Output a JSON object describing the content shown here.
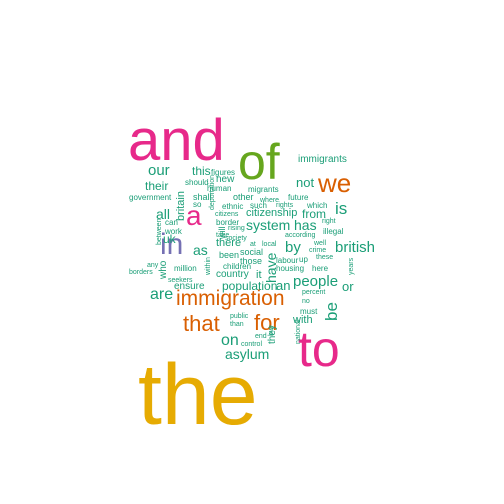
{
  "palette": {
    "teal": "#1b9e77",
    "orange": "#d95f02",
    "purple": "#7570b3",
    "magenta": "#e7298a",
    "green": "#66a61e",
    "gold": "#e6ab02"
  },
  "words": [
    {
      "text": "the",
      "color": "gold"
    },
    {
      "text": "and",
      "color": "magenta"
    },
    {
      "text": "of",
      "color": "green"
    },
    {
      "text": "to",
      "color": "magenta"
    },
    {
      "text": "a",
      "color": "magenta"
    },
    {
      "text": "in",
      "color": "purple"
    },
    {
      "text": "we",
      "color": "orange"
    },
    {
      "text": "immigration",
      "color": "orange"
    },
    {
      "text": "that",
      "color": "orange"
    },
    {
      "text": "for",
      "color": "orange"
    },
    {
      "text": "is",
      "color": "teal"
    },
    {
      "text": "our",
      "color": "teal"
    },
    {
      "text": "not",
      "color": "teal"
    },
    {
      "text": "immigrants",
      "color": "teal"
    },
    {
      "text": "are",
      "color": "teal"
    },
    {
      "text": "on",
      "color": "teal"
    },
    {
      "text": "be",
      "color": "teal"
    },
    {
      "text": "people",
      "color": "teal"
    },
    {
      "text": "british",
      "color": "teal"
    },
    {
      "text": "by",
      "color": "teal"
    },
    {
      "text": "asylum",
      "color": "teal"
    },
    {
      "text": "system",
      "color": "teal"
    },
    {
      "text": "has",
      "color": "teal"
    },
    {
      "text": "all",
      "color": "teal"
    },
    {
      "text": "as",
      "color": "teal"
    },
    {
      "text": "have",
      "color": "teal"
    },
    {
      "text": "population",
      "color": "teal"
    },
    {
      "text": "an",
      "color": "teal"
    },
    {
      "text": "or",
      "color": "teal"
    },
    {
      "text": "this",
      "color": "teal"
    },
    {
      "text": "their",
      "color": "teal"
    },
    {
      "text": "britain",
      "color": "teal"
    },
    {
      "text": "uk",
      "color": "teal"
    },
    {
      "text": "from",
      "color": "teal"
    },
    {
      "text": "citizenship",
      "color": "teal"
    },
    {
      "text": "with",
      "color": "teal"
    },
    {
      "text": "it",
      "color": "teal"
    },
    {
      "text": "new",
      "color": "teal"
    },
    {
      "text": "there",
      "color": "teal"
    },
    {
      "text": "country",
      "color": "teal"
    },
    {
      "text": "ensure",
      "color": "teal"
    },
    {
      "text": "will",
      "color": "teal"
    },
    {
      "text": "who",
      "color": "teal"
    },
    {
      "text": "they",
      "color": "teal"
    },
    {
      "text": "figures",
      "color": "teal"
    },
    {
      "text": "should",
      "color": "teal"
    },
    {
      "text": "human",
      "color": "teal"
    },
    {
      "text": "so",
      "color": "teal"
    },
    {
      "text": "other",
      "color": "teal"
    },
    {
      "text": "migrants",
      "color": "teal"
    },
    {
      "text": "future",
      "color": "teal"
    },
    {
      "text": "where",
      "color": "teal"
    },
    {
      "text": "which",
      "color": "teal"
    },
    {
      "text": "rights",
      "color": "teal"
    },
    {
      "text": "government",
      "color": "teal"
    },
    {
      "text": "shall",
      "color": "teal"
    },
    {
      "text": "ethnic",
      "color": "teal"
    },
    {
      "text": "such",
      "color": "teal"
    },
    {
      "text": "citizens",
      "color": "teal"
    },
    {
      "text": "border",
      "color": "teal"
    },
    {
      "text": "rising",
      "color": "teal"
    },
    {
      "text": "can",
      "color": "teal"
    },
    {
      "text": "work",
      "color": "teal"
    },
    {
      "text": "take",
      "color": "teal"
    },
    {
      "text": "society",
      "color": "teal"
    },
    {
      "text": "according",
      "color": "teal"
    },
    {
      "text": "illegal",
      "color": "teal"
    },
    {
      "text": "right",
      "color": "teal"
    },
    {
      "text": "crime",
      "color": "teal"
    },
    {
      "text": "well",
      "color": "teal"
    },
    {
      "text": "at",
      "color": "teal"
    },
    {
      "text": "local",
      "color": "teal"
    },
    {
      "text": "social",
      "color": "teal"
    },
    {
      "text": "been",
      "color": "teal"
    },
    {
      "text": "these",
      "color": "teal"
    },
    {
      "text": "labour",
      "color": "teal"
    },
    {
      "text": "up",
      "color": "teal"
    },
    {
      "text": "any",
      "color": "teal"
    },
    {
      "text": "those",
      "color": "teal"
    },
    {
      "text": "children",
      "color": "teal"
    },
    {
      "text": "housing",
      "color": "teal"
    },
    {
      "text": "here",
      "color": "teal"
    },
    {
      "text": "million",
      "color": "teal"
    },
    {
      "text": "borders",
      "color": "teal"
    },
    {
      "text": "seekers",
      "color": "teal"
    },
    {
      "text": "percent",
      "color": "teal"
    },
    {
      "text": "no",
      "color": "teal"
    },
    {
      "text": "must",
      "color": "teal"
    },
    {
      "text": "public",
      "color": "teal"
    },
    {
      "text": "than",
      "color": "teal"
    },
    {
      "text": "end",
      "color": "teal"
    },
    {
      "text": "control",
      "color": "teal"
    },
    {
      "text": "national",
      "color": "teal"
    },
    {
      "text": "but",
      "color": "teal"
    },
    {
      "text": "between",
      "color": "teal"
    },
    {
      "text": "within",
      "color": "teal"
    },
    {
      "text": "deportation",
      "color": "teal"
    },
    {
      "text": "years",
      "color": "teal"
    }
  ]
}
